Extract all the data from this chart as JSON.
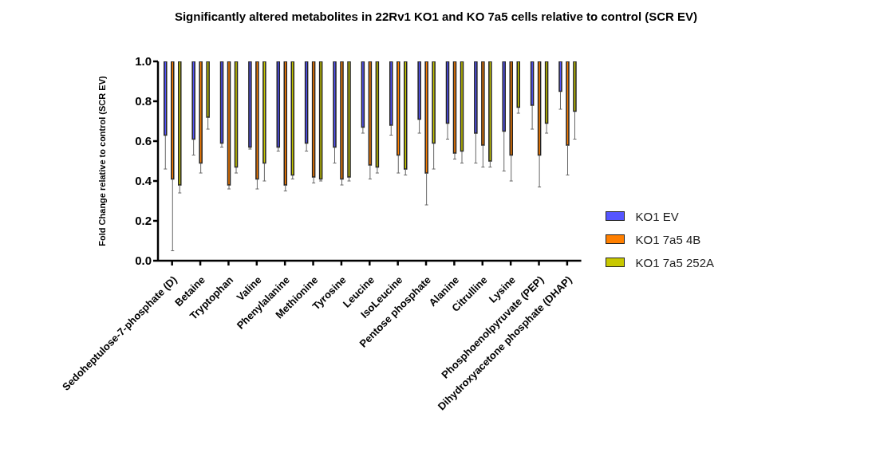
{
  "chart_data": {
    "type": "bar",
    "title": "Significantly altered metabolites in 22Rv1 KO1 and KO 7a5 cells relative to control (SCR EV)",
    "ylabel": "Fold Change relative to control (SCR EV)",
    "categories": [
      "Sedoheptulose-7-phosphate (D)",
      "Betaine",
      "Tryptophan",
      "Valine",
      "Phenylalanine",
      "Methionine",
      "Tyrosine",
      "Leucine",
      "IsoLeucine",
      "Pentose phosphate",
      "Alanine",
      "Citrulline",
      "Lysine",
      "Phosphoenolpyruvate (PEP)",
      "Dihydroxyacetone phosphate (DHAP)"
    ],
    "series": [
      {
        "name": "KO1 EV",
        "color": "#5555ff",
        "base": [
          1,
          1,
          1,
          1,
          1,
          1,
          1,
          1,
          1,
          1,
          1,
          1,
          1,
          1,
          1
        ],
        "values": [
          -0.37,
          -0.39,
          -0.41,
          -0.43,
          -0.43,
          -0.41,
          -0.43,
          -0.33,
          -0.32,
          -0.29,
          -0.31,
          -0.36,
          -0.35,
          -0.22,
          -0.15
        ],
        "errors": [
          [
            0.46,
            0.63
          ],
          [
            0.53,
            0.61
          ],
          [
            0.57,
            0.59
          ],
          [
            0.56,
            0.57
          ],
          [
            0.55,
            0.57
          ],
          [
            0.55,
            0.59
          ],
          [
            0.49,
            0.57
          ],
          [
            0.64,
            0.67
          ],
          [
            0.63,
            0.68
          ],
          [
            0.64,
            0.71
          ],
          [
            0.61,
            0.69
          ],
          [
            0.49,
            0.64
          ],
          [
            0.45,
            0.65
          ],
          [
            0.66,
            0.78
          ],
          [
            0.76,
            0.85
          ]
        ]
      },
      {
        "name": "KO1 7a5 4B",
        "color": "#ff7f00",
        "base": [
          1,
          1,
          1,
          1,
          1,
          1,
          1,
          1,
          1,
          1,
          1,
          1,
          1,
          1,
          1
        ],
        "values": [
          -0.59,
          -0.51,
          -0.62,
          -0.59,
          -0.62,
          -0.58,
          -0.59,
          -0.52,
          -0.47,
          -0.56,
          -0.46,
          -0.42,
          -0.47,
          -0.47,
          -0.42
        ],
        "errors": [
          [
            0.05,
            0.41
          ],
          [
            0.44,
            0.49
          ],
          [
            0.36,
            0.38
          ],
          [
            0.36,
            0.41
          ],
          [
            0.35,
            0.38
          ],
          [
            0.39,
            0.42
          ],
          [
            0.38,
            0.41
          ],
          [
            0.41,
            0.48
          ],
          [
            0.44,
            0.53
          ],
          [
            0.28,
            0.44
          ],
          [
            0.51,
            0.54
          ],
          [
            0.47,
            0.58
          ],
          [
            0.4,
            0.53
          ],
          [
            0.37,
            0.53
          ],
          [
            0.43,
            0.58
          ]
        ]
      },
      {
        "name": "KO1 7a5 252A",
        "color": "#c8c800",
        "base": [
          1,
          1,
          1,
          1,
          1,
          1,
          1,
          1,
          1,
          1,
          1,
          1,
          1,
          1,
          1
        ],
        "values": [
          -0.62,
          -0.28,
          -0.53,
          -0.51,
          -0.57,
          -0.59,
          -0.58,
          -0.53,
          -0.54,
          -0.41,
          -0.45,
          -0.5,
          -0.23,
          -0.31,
          -0.25
        ],
        "errors": [
          [
            0.34,
            0.38
          ],
          [
            0.66,
            0.72
          ],
          [
            0.44,
            0.47
          ],
          [
            0.4,
            0.49
          ],
          [
            0.41,
            0.43
          ],
          [
            0.4,
            0.41
          ],
          [
            0.4,
            0.42
          ],
          [
            0.44,
            0.47
          ],
          [
            0.43,
            0.46
          ],
          [
            0.46,
            0.59
          ],
          [
            0.49,
            0.55
          ],
          [
            0.47,
            0.5
          ],
          [
            0.74,
            0.77
          ],
          [
            0.64,
            0.69
          ],
          [
            0.61,
            0.75
          ]
        ]
      }
    ],
    "ylim": [
      0,
      1
    ],
    "yticks": [
      {
        "value": 0,
        "label": "0.0"
      },
      {
        "value": 0.2,
        "label": "0.2"
      },
      {
        "value": 0.4,
        "label": "0.4"
      },
      {
        "value": 0.6,
        "label": "0.6"
      },
      {
        "value": 0.8,
        "label": "0.8"
      },
      {
        "value": 1,
        "label": "1.0"
      }
    ],
    "grid": false,
    "legend": "right"
  }
}
